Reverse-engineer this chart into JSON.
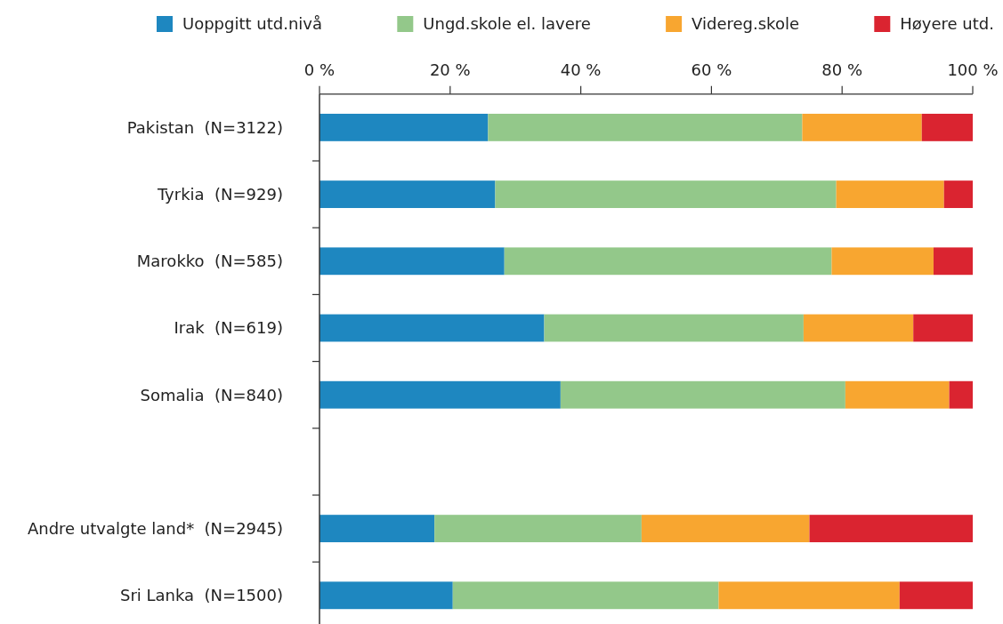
{
  "chart_data": {
    "type": "bar",
    "orientation": "horizontal",
    "stacked": true,
    "categories": [
      "Pakistan  (N=3122)",
      "Tyrkia  (N=929)",
      "Marokko  (N=585)",
      "Irak  (N=619)",
      "Somalia  (N=840)",
      null,
      "Andre utvalgte land*  (N=2945)",
      "Sri Lanka  (N=1500)"
    ],
    "series": [
      {
        "name": "Uoppgitt utd.nivå",
        "color": "#1e87c0",
        "values": [
          25.8,
          26.9,
          28.3,
          34.4,
          36.9,
          null,
          17.6,
          20.4
        ]
      },
      {
        "name": "Ungd.skole el. lavere",
        "color": "#93c88a",
        "values": [
          48.1,
          52.2,
          50.1,
          39.7,
          43.6,
          null,
          31.7,
          40.7
        ]
      },
      {
        "name": "Videreg.skole",
        "color": "#f8a630",
        "values": [
          18.3,
          16.5,
          15.6,
          16.8,
          15.9,
          null,
          25.7,
          27.7
        ]
      },
      {
        "name": "Høyere utd.",
        "color": "#da2430",
        "values": [
          7.8,
          4.4,
          6.0,
          9.1,
          3.6,
          null,
          25.0,
          11.2
        ]
      }
    ],
    "xlim": [
      0,
      100
    ],
    "xticks": [
      {
        "value": 0,
        "label": "0 %"
      },
      {
        "value": 20,
        "label": "20 %"
      },
      {
        "value": 40,
        "label": "40 %"
      },
      {
        "value": 60,
        "label": "60 %"
      },
      {
        "value": 80,
        "label": "80 %"
      },
      {
        "value": 100,
        "label": "100 %"
      }
    ],
    "legend": "top"
  }
}
